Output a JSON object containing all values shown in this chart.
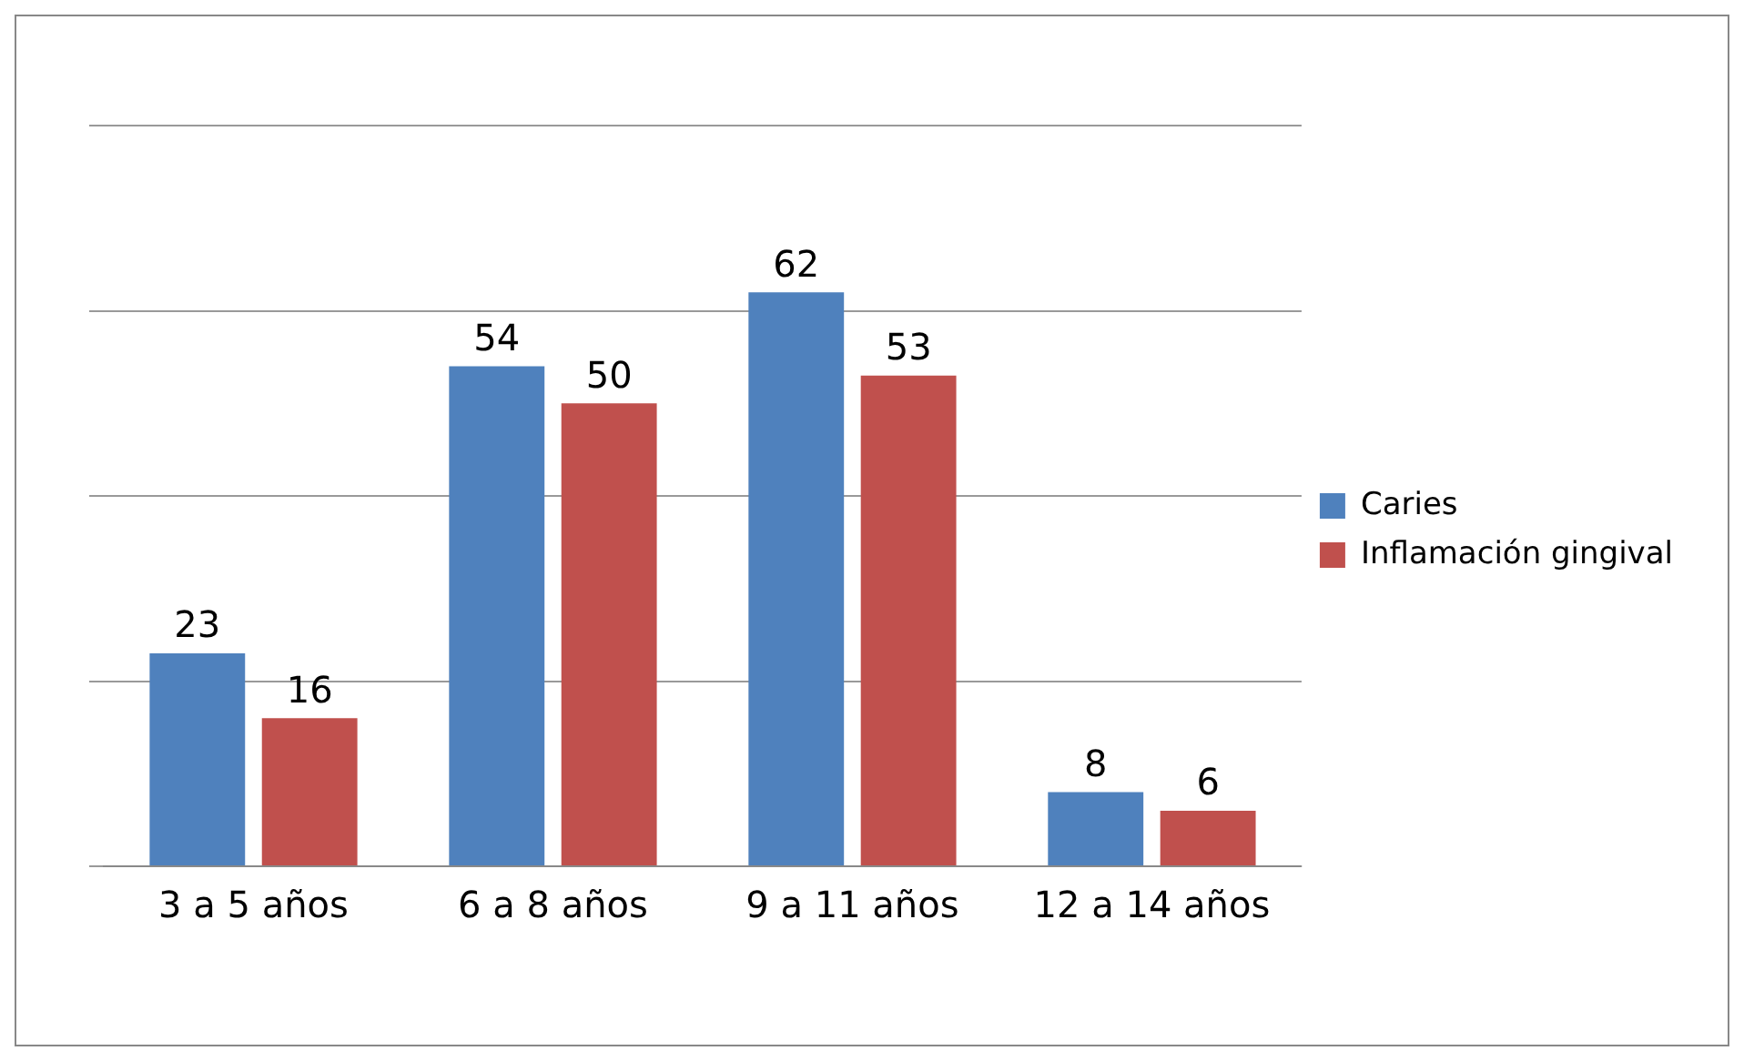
{
  "chart_data": {
    "type": "bar",
    "categories": [
      "3 a 5 años",
      "6 a 8 años",
      "9 a 11 años",
      "12 a 14 años"
    ],
    "series": [
      {
        "name": "Caries",
        "color": "#4f81bd",
        "values": [
          23,
          54,
          62,
          8
        ]
      },
      {
        "name": "Inflamación gingival",
        "color": "#c0504d",
        "values": [
          16,
          50,
          53,
          6
        ]
      }
    ],
    "ylim": [
      0,
      80
    ],
    "yticks": [
      {
        "value": 0,
        "label": null
      },
      {
        "value": 20,
        "label": null
      },
      {
        "value": 40,
        "label": null
      },
      {
        "value": 60,
        "label": null
      },
      {
        "value": 80,
        "label": null
      }
    ],
    "tick_labels": "x",
    "grid": "y",
    "legend": "right",
    "data_labels": true
  }
}
